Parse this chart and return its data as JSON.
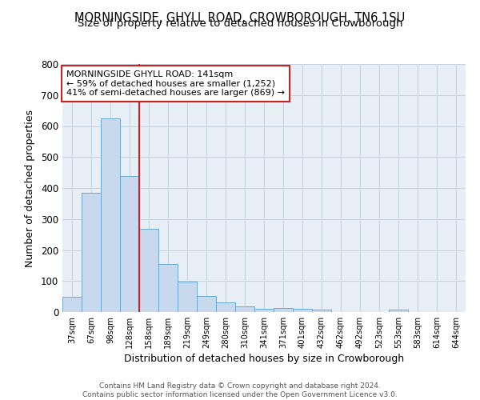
{
  "title": "MORNINGSIDE, GHYLL ROAD, CROWBOROUGH, TN6 1SU",
  "subtitle": "Size of property relative to detached houses in Crowborough",
  "xlabel": "Distribution of detached houses by size in Crowborough",
  "ylabel": "Number of detached properties",
  "bar_labels": [
    "37sqm",
    "67sqm",
    "98sqm",
    "128sqm",
    "158sqm",
    "189sqm",
    "219sqm",
    "249sqm",
    "280sqm",
    "310sqm",
    "341sqm",
    "371sqm",
    "401sqm",
    "432sqm",
    "462sqm",
    "492sqm",
    "523sqm",
    "553sqm",
    "583sqm",
    "614sqm",
    "644sqm"
  ],
  "bar_values": [
    48,
    385,
    625,
    440,
    268,
    155,
    97,
    52,
    30,
    18,
    10,
    13,
    10,
    7,
    0,
    0,
    0,
    7,
    0,
    0,
    0
  ],
  "bar_color": "#c8d9ee",
  "bar_edge_color": "#6aaad4",
  "vline_x_index": 3,
  "vline_color": "#cc2222",
  "annotation_text": "MORNINGSIDE GHYLL ROAD: 141sqm\n← 59% of detached houses are smaller (1,252)\n41% of semi-detached houses are larger (869) →",
  "annotation_box_color": "#cc2222",
  "ylim": [
    0,
    800
  ],
  "yticks": [
    0,
    100,
    200,
    300,
    400,
    500,
    600,
    700,
    800
  ],
  "footer": "Contains HM Land Registry data © Crown copyright and database right 2024.\nContains public sector information licensed under the Open Government Licence v3.0.",
  "plot_bg_color": "#e8eef5",
  "fig_bg_color": "#ffffff",
  "grid_color": "#c8d4e0",
  "title_fontsize": 10.5,
  "subtitle_fontsize": 9.5
}
